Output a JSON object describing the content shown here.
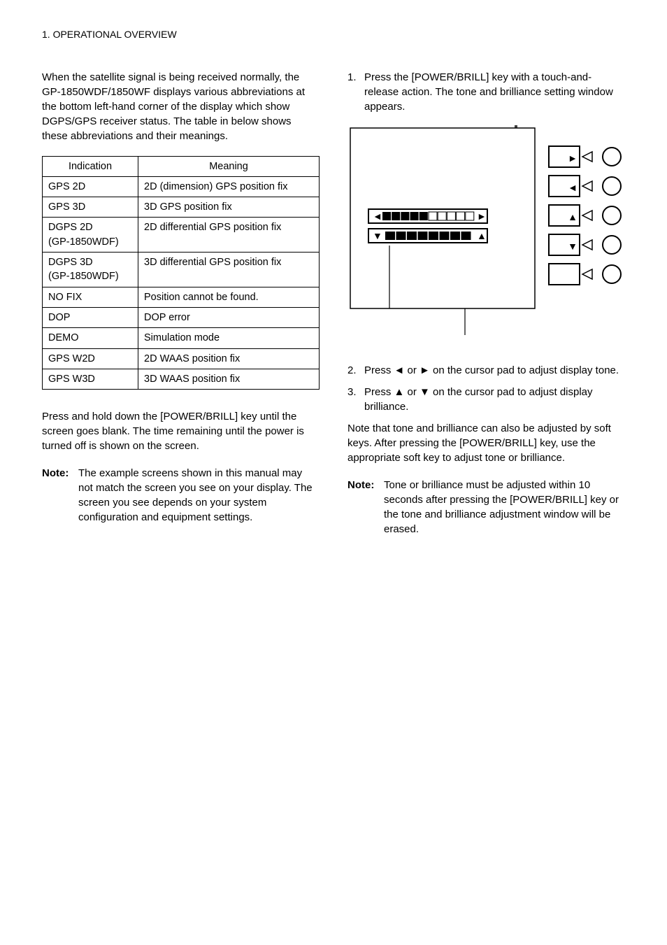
{
  "header": "1. OPERATIONAL OVERVIEW",
  "left": {
    "intro": "When the satellite signal is being received normally, the GP-1850WDF/1850WF displays various abbreviations at the bottom left-hand corner of the display which show DGPS/GPS receiver status. The table in below shows these abbreviations and their meanings.",
    "table": {
      "head_col1": "Indication",
      "head_col2": "Meaning",
      "rows": [
        {
          "c1": "GPS 2D",
          "c2": "2D (dimension) GPS position fix"
        },
        {
          "c1": "GPS 3D",
          "c2": "3D GPS position fix"
        },
        {
          "c1": "DGPS 2D\n(GP-1850WDF)",
          "c2": "2D differential GPS position fix"
        },
        {
          "c1": "DGPS 3D\n(GP-1850WDF)",
          "c2": "3D differential GPS position fix"
        },
        {
          "c1": "NO FIX",
          "c2": "Position cannot be found."
        },
        {
          "c1": "DOP",
          "c2": "DOP error"
        },
        {
          "c1": "DEMO",
          "c2": "Simulation mode"
        },
        {
          "c1": "GPS W2D",
          "c2": "2D WAAS position fix"
        },
        {
          "c1": "GPS W3D",
          "c2": "3D WAAS position fix"
        }
      ]
    },
    "poweroff": "Press and hold down the [POWER/BRILL] key until the screen goes blank. The time remaining until the power is turned off is shown on the screen.",
    "note_label": "Note:",
    "note_body": "The example screens shown in this manual may not match the screen you see on your display. The screen you see depends on your system configuration and equipment settings."
  },
  "right": {
    "step1_num": "1.",
    "step1": "Press the [POWER/BRILL] key with a touch-and-release action. The tone and brilliance setting window appears.",
    "step2_num": "2.",
    "step2": "Press ◄ or ► on the cursor pad to adjust display tone.",
    "step3_num": "3.",
    "step3": "Press ▲ or ▼ on the cursor pad to adjust display brilliance.",
    "note_para": "Note that tone and brilliance can also be adjusted by soft keys. After pressing the [POWER/BRILL] key, use the appropriate soft key to adjust tone or brilliance.",
    "note_label": "Note:",
    "note_body": "Tone or brilliance must be adjusted within 10 seconds after pressing the [POWER/BRILL] key or the tone and brilliance adjustment window will be erased."
  },
  "diagram": {
    "tone_filled": 5,
    "tone_total": 10,
    "brill_filled": 8,
    "brill_total": 8,
    "softkey_glyphs": [
      "►",
      "◄",
      "▲",
      "▼",
      ""
    ],
    "colors": {
      "stroke": "#000000",
      "fill": "#000000",
      "bg": "#ffffff"
    }
  }
}
